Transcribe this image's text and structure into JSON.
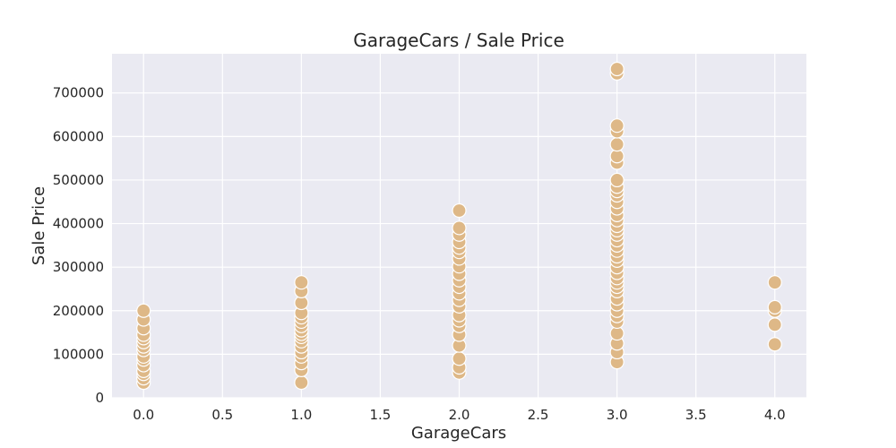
{
  "chart_data": {
    "type": "scatter",
    "title": "GarageCars / Sale Price",
    "xlabel": "GarageCars",
    "ylabel": "Sale Price",
    "xlim": [
      -0.2,
      4.2
    ],
    "ylim": [
      0,
      790000
    ],
    "xticks": [
      0.0,
      0.5,
      1.0,
      1.5,
      2.0,
      2.5,
      3.0,
      3.5,
      4.0
    ],
    "xtick_labels": [
      "0.0",
      "0.5",
      "1.0",
      "1.5",
      "2.0",
      "2.5",
      "3.0",
      "3.5",
      "4.0"
    ],
    "yticks": [
      0,
      100000,
      200000,
      300000,
      400000,
      500000,
      600000,
      700000
    ],
    "ytick_labels": [
      "0",
      "100000",
      "200000",
      "300000",
      "400000",
      "500000",
      "600000",
      "700000"
    ],
    "grid": true,
    "background_color": "#eaeaf2",
    "point_color": "#deb887",
    "series": [
      {
        "points": [
          [
            0,
            35000
          ],
          [
            0,
            45000
          ],
          [
            0,
            55000
          ],
          [
            0,
            62000
          ],
          [
            0,
            75000
          ],
          [
            0,
            88000
          ],
          [
            0,
            95000
          ],
          [
            0,
            110000
          ],
          [
            0,
            118000
          ],
          [
            0,
            128000
          ],
          [
            0,
            137000
          ],
          [
            0,
            145000
          ],
          [
            0,
            160000
          ],
          [
            0,
            180000
          ],
          [
            0,
            200000
          ],
          [
            1,
            35000
          ],
          [
            1,
            64000
          ],
          [
            1,
            80000
          ],
          [
            1,
            95000
          ],
          [
            1,
            105000
          ],
          [
            1,
            118000
          ],
          [
            1,
            130000
          ],
          [
            1,
            140000
          ],
          [
            1,
            147000
          ],
          [
            1,
            155000
          ],
          [
            1,
            165000
          ],
          [
            1,
            175000
          ],
          [
            1,
            185000
          ],
          [
            1,
            195000
          ],
          [
            1,
            218000
          ],
          [
            1,
            245000
          ],
          [
            1,
            265000
          ],
          [
            2,
            58000
          ],
          [
            2,
            70000
          ],
          [
            2,
            90000
          ],
          [
            2,
            120000
          ],
          [
            2,
            145000
          ],
          [
            2,
            165000
          ],
          [
            2,
            178000
          ],
          [
            2,
            190000
          ],
          [
            2,
            210000
          ],
          [
            2,
            225000
          ],
          [
            2,
            240000
          ],
          [
            2,
            255000
          ],
          [
            2,
            270000
          ],
          [
            2,
            285000
          ],
          [
            2,
            302000
          ],
          [
            2,
            320000
          ],
          [
            2,
            335000
          ],
          [
            2,
            345000
          ],
          [
            2,
            358000
          ],
          [
            2,
            375000
          ],
          [
            2,
            390000
          ],
          [
            2,
            430000
          ],
          [
            3,
            82000
          ],
          [
            3,
            105000
          ],
          [
            3,
            125000
          ],
          [
            3,
            148000
          ],
          [
            3,
            175000
          ],
          [
            3,
            188000
          ],
          [
            3,
            200000
          ],
          [
            3,
            215000
          ],
          [
            3,
            228000
          ],
          [
            3,
            245000
          ],
          [
            3,
            255000
          ],
          [
            3,
            265000
          ],
          [
            3,
            275000
          ],
          [
            3,
            287000
          ],
          [
            3,
            300000
          ],
          [
            3,
            315000
          ],
          [
            3,
            325000
          ],
          [
            3,
            338000
          ],
          [
            3,
            350000
          ],
          [
            3,
            362000
          ],
          [
            3,
            375000
          ],
          [
            3,
            385000
          ],
          [
            3,
            395000
          ],
          [
            3,
            408000
          ],
          [
            3,
            420000
          ],
          [
            3,
            435000
          ],
          [
            3,
            450000
          ],
          [
            3,
            465000
          ],
          [
            3,
            475000
          ],
          [
            3,
            485000
          ],
          [
            3,
            500000
          ],
          [
            3,
            540000
          ],
          [
            3,
            555000
          ],
          [
            3,
            582000
          ],
          [
            3,
            612000
          ],
          [
            3,
            625000
          ],
          [
            3,
            745000
          ],
          [
            3,
            755000
          ],
          [
            4,
            123000
          ],
          [
            4,
            168000
          ],
          [
            4,
            200000
          ],
          [
            4,
            208000
          ],
          [
            4,
            265000
          ]
        ]
      }
    ]
  }
}
